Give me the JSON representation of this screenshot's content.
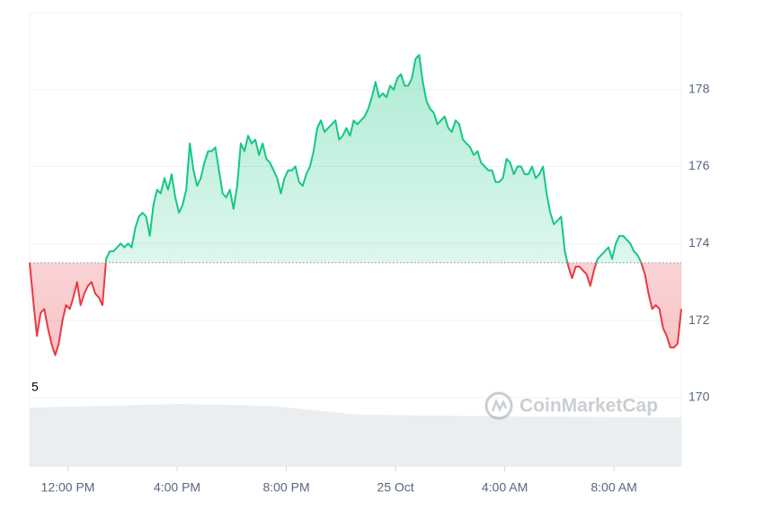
{
  "chart_data": {
    "type": "line",
    "annotation": "5",
    "watermark": "CoinMarketCap",
    "baseline": 173.5,
    "colors": {
      "up": "#16c784",
      "down": "#ea3943"
    },
    "xlim": [
      636,
      2068
    ],
    "xticks": [
      {
        "value": 720,
        "label": "12:00 PM"
      },
      {
        "value": 960,
        "label": "4:00 PM"
      },
      {
        "value": 1200,
        "label": "8:00 PM"
      },
      {
        "value": 1440,
        "label": "25 Oct"
      },
      {
        "value": 1680,
        "label": "4:00 AM"
      },
      {
        "value": 1920,
        "label": "8:00 AM"
      }
    ],
    "ylim": [
      168.2,
      180
    ],
    "yticks": [
      170,
      172,
      174,
      176,
      178
    ],
    "grid": true,
    "x": [
      636,
      644,
      652,
      660,
      668,
      676,
      684,
      692,
      700,
      708,
      716,
      724,
      732,
      740,
      748,
      756,
      764,
      772,
      780,
      788,
      796,
      804,
      812,
      820,
      828,
      836,
      844,
      852,
      860,
      868,
      876,
      884,
      892,
      900,
      908,
      916,
      924,
      932,
      940,
      948,
      956,
      964,
      972,
      980,
      988,
      996,
      1004,
      1012,
      1020,
      1028,
      1036,
      1044,
      1052,
      1060,
      1068,
      1076,
      1084,
      1092,
      1100,
      1108,
      1116,
      1124,
      1132,
      1140,
      1148,
      1156,
      1164,
      1172,
      1180,
      1188,
      1196,
      1204,
      1212,
      1220,
      1228,
      1236,
      1244,
      1252,
      1260,
      1268,
      1276,
      1284,
      1292,
      1300,
      1308,
      1316,
      1324,
      1332,
      1340,
      1348,
      1356,
      1364,
      1372,
      1380,
      1388,
      1396,
      1404,
      1412,
      1420,
      1428,
      1436,
      1444,
      1452,
      1460,
      1468,
      1476,
      1484,
      1492,
      1500,
      1508,
      1516,
      1524,
      1532,
      1540,
      1548,
      1556,
      1564,
      1572,
      1580,
      1588,
      1596,
      1604,
      1612,
      1620,
      1628,
      1636,
      1644,
      1652,
      1660,
      1668,
      1676,
      1684,
      1692,
      1700,
      1708,
      1716,
      1724,
      1732,
      1740,
      1748,
      1756,
      1764,
      1772,
      1780,
      1788,
      1796,
      1804,
      1812,
      1820,
      1828,
      1836,
      1844,
      1852,
      1860,
      1868,
      1876,
      1884,
      1892,
      1900,
      1908,
      1916,
      1924,
      1932,
      1940,
      1948,
      1956,
      1964,
      1972,
      1980,
      1988,
      1996,
      2004,
      2012,
      2020,
      2028,
      2036,
      2044,
      2052,
      2060,
      2068
    ],
    "values": [
      173.5,
      172.5,
      171.6,
      172.2,
      172.3,
      171.8,
      171.4,
      171.1,
      171.4,
      172.0,
      172.4,
      172.3,
      172.6,
      173.0,
      172.4,
      172.7,
      172.9,
      173.0,
      172.7,
      172.6,
      172.4,
      173.6,
      173.8,
      173.8,
      173.9,
      174.0,
      173.9,
      174.0,
      173.9,
      174.4,
      174.7,
      174.8,
      174.7,
      174.2,
      175.0,
      175.4,
      175.3,
      175.7,
      175.4,
      175.8,
      175.2,
      174.8,
      175.0,
      175.4,
      176.6,
      175.9,
      175.5,
      175.7,
      176.1,
      176.4,
      176.4,
      176.5,
      175.9,
      175.3,
      175.2,
      175.4,
      174.9,
      175.5,
      176.6,
      176.4,
      176.8,
      176.6,
      176.7,
      176.3,
      176.6,
      176.2,
      176.1,
      175.9,
      175.7,
      175.3,
      175.7,
      175.9,
      175.9,
      176.0,
      175.6,
      175.5,
      175.8,
      176.0,
      176.4,
      177.0,
      177.2,
      176.9,
      177.0,
      177.1,
      177.2,
      176.7,
      176.8,
      177.0,
      176.8,
      177.2,
      177.1,
      177.2,
      177.3,
      177.5,
      177.8,
      178.2,
      177.8,
      177.9,
      177.8,
      178.1,
      178.0,
      178.3,
      178.4,
      178.1,
      178.1,
      178.3,
      178.8,
      178.9,
      178.2,
      177.7,
      177.5,
      177.4,
      177.1,
      177.2,
      177.3,
      177.0,
      176.9,
      177.2,
      177.1,
      176.7,
      176.6,
      176.5,
      176.3,
      176.4,
      176.1,
      176.0,
      175.9,
      175.9,
      175.6,
      175.6,
      175.7,
      176.2,
      176.1,
      175.8,
      176.0,
      176.0,
      175.8,
      175.8,
      176.0,
      175.7,
      175.8,
      176.0,
      175.3,
      174.8,
      174.5,
      174.6,
      174.7,
      173.8,
      173.4,
      173.1,
      173.4,
      173.4,
      173.3,
      173.2,
      172.9,
      173.3,
      173.6,
      173.7,
      173.8,
      173.9,
      173.6,
      174.0,
      174.2,
      174.2,
      174.1,
      174.0,
      173.8,
      173.7,
      173.5,
      173.2,
      172.7,
      172.3,
      172.4,
      172.3,
      171.8,
      171.6,
      171.3,
      171.3,
      171.4,
      172.3
    ]
  }
}
